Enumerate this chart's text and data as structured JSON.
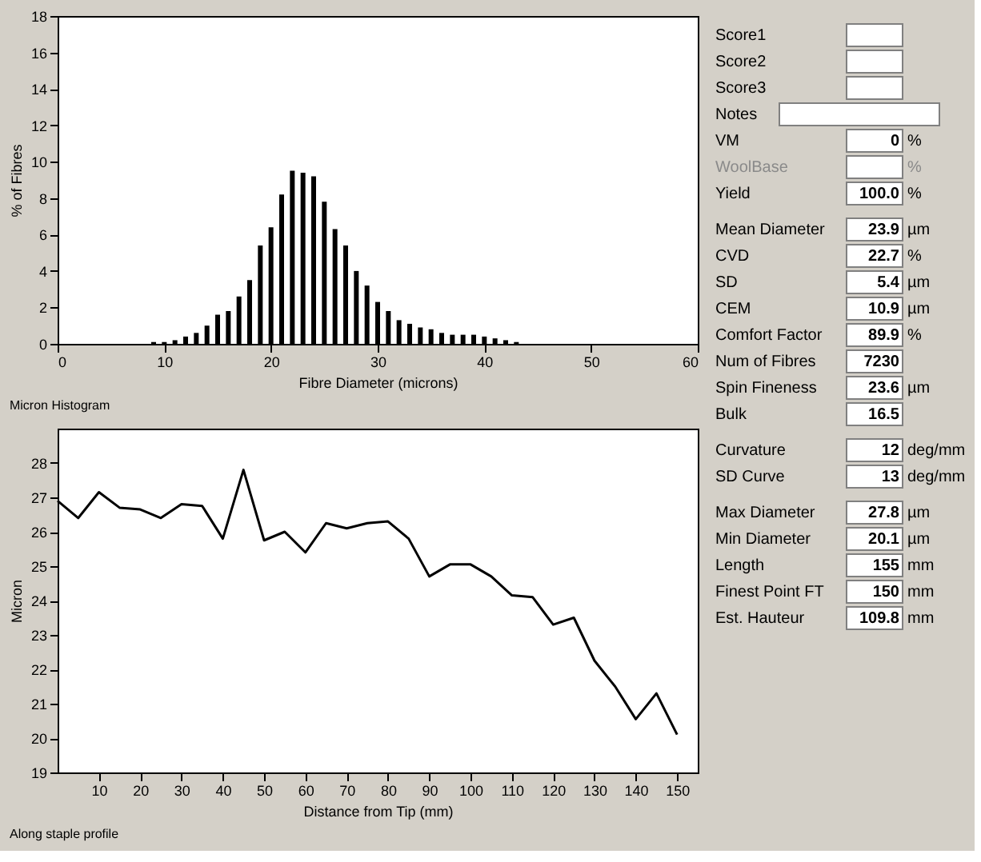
{
  "chart_data": [
    {
      "type": "bar",
      "xlabel": "Fibre Diameter (microns)",
      "ylabel": "% of Fibres",
      "annotations": [
        "Micron Histogram"
      ],
      "color": "#000000",
      "grid": false,
      "xlim": [
        0,
        60
      ],
      "xticks": [
        0,
        10,
        20,
        30,
        40,
        50,
        60
      ],
      "ylim": [
        0,
        18
      ],
      "yticks": [
        0,
        2,
        4,
        6,
        8,
        10,
        12,
        14,
        16,
        18
      ],
      "x": [
        9,
        10,
        11,
        12,
        13,
        14,
        15,
        16,
        17,
        18,
        19,
        20,
        21,
        22,
        23,
        24,
        25,
        26,
        27,
        28,
        29,
        30,
        31,
        32,
        33,
        34,
        35,
        36,
        37,
        38,
        39,
        40,
        41,
        42,
        43
      ],
      "values": [
        0.1,
        0.1,
        0.2,
        0.4,
        0.6,
        1.0,
        1.6,
        1.8,
        2.6,
        3.5,
        5.4,
        6.4,
        8.2,
        9.5,
        9.4,
        9.2,
        7.8,
        6.3,
        5.4,
        4.0,
        3.2,
        2.3,
        1.8,
        1.3,
        1.1,
        0.9,
        0.8,
        0.6,
        0.5,
        0.5,
        0.5,
        0.4,
        0.3,
        0.2,
        0.1
      ]
    },
    {
      "type": "line",
      "xlabel": "Distance from Tip (mm)",
      "ylabel": "Micron",
      "annotations": [
        "Along staple profile"
      ],
      "color": "#000000",
      "grid": false,
      "marker": "none",
      "xlim": [
        0,
        155
      ],
      "xticks": [
        10,
        20,
        30,
        40,
        50,
        60,
        70,
        80,
        90,
        100,
        110,
        120,
        130,
        140,
        150
      ],
      "ylim": [
        19,
        29
      ],
      "yticks": [
        19,
        20,
        21,
        22,
        23,
        24,
        25,
        26,
        27,
        28
      ],
      "x": [
        0,
        5,
        10,
        15,
        20,
        25,
        30,
        35,
        40,
        45,
        50,
        55,
        60,
        65,
        70,
        75,
        80,
        85,
        90,
        95,
        100,
        105,
        110,
        115,
        120,
        125,
        130,
        135,
        140,
        145,
        150
      ],
      "values": [
        26.9,
        26.4,
        27.15,
        26.7,
        26.65,
        26.4,
        26.8,
        26.75,
        25.8,
        27.8,
        25.75,
        26.0,
        25.4,
        26.25,
        26.1,
        26.25,
        26.3,
        25.8,
        24.7,
        25.05,
        25.05,
        24.7,
        24.15,
        24.1,
        23.3,
        23.5,
        22.25,
        21.5,
        20.55,
        21.3,
        20.1
      ]
    },
    {
      "type": "other",
      "categories": [
        "Score1",
        "Score2",
        "Score3",
        "Notes",
        "VM",
        "WoolBase",
        "Yield",
        "Mean Diameter",
        "CVD",
        "SD",
        "CEM",
        "Comfort Factor",
        "Num of Fibres",
        "Spin Fineness",
        "Bulk",
        "Curvature",
        "SD Curve",
        "Max Diameter",
        "Min Diameter",
        "Length",
        "Finest Point FT",
        "Est. Hauteur"
      ],
      "value_labels": [
        null,
        null,
        null,
        null,
        "0",
        null,
        "100.0",
        "23.9",
        "22.7",
        "5.4",
        "10.9",
        "89.9",
        "7230",
        "23.6",
        "16.5",
        "12",
        "13",
        "27.8",
        "20.1",
        "155",
        "150",
        "109.8"
      ],
      "y2_categories": [
        null,
        null,
        null,
        null,
        "%",
        "%",
        "%",
        "µm",
        "%",
        "µm",
        "µm",
        "%",
        null,
        "µm",
        null,
        "deg/mm",
        "deg/mm",
        "µm",
        "µm",
        "mm",
        "mm",
        "mm"
      ]
    }
  ]
}
